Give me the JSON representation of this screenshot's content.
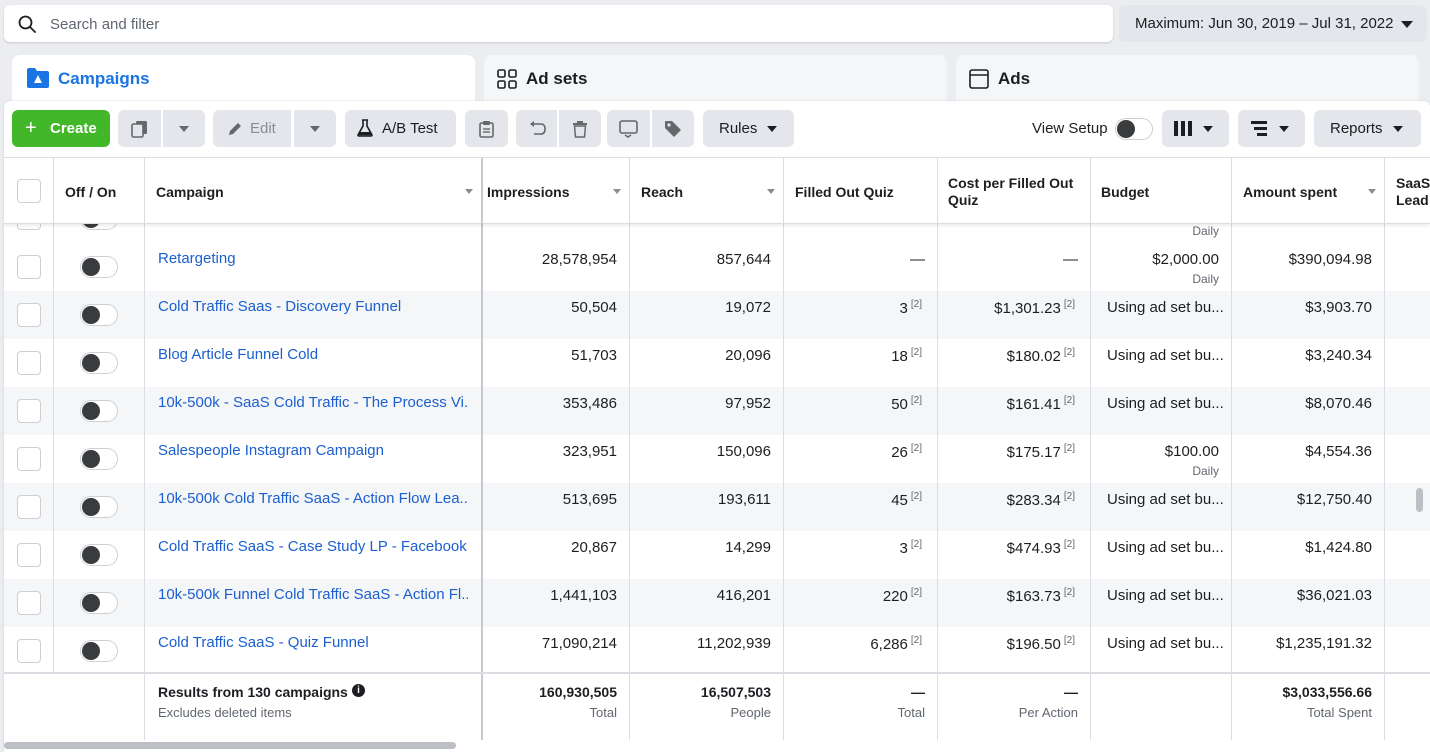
{
  "search": {
    "placeholder": "Search and filter"
  },
  "date_range": {
    "label": "Maximum: Jun 30, 2019 – Jul 31, 2022"
  },
  "tabs": [
    {
      "label": "Campaigns",
      "active": true
    },
    {
      "label": "Ad sets",
      "active": false
    },
    {
      "label": "Ads",
      "active": false
    }
  ],
  "toolbar": {
    "create_label": "Create",
    "edit_label": "Edit",
    "ab_test_label": "A/B Test",
    "rules_label": "Rules",
    "view_setup_label": "View Setup",
    "reports_label": "Reports"
  },
  "columns": {
    "off_on": "Off / On",
    "campaign": "Campaign",
    "impressions": "Impressions",
    "reach": "Reach",
    "filled_out_quiz": "Filled Out Quiz",
    "cost_per_filled_line1": "Cost per Filled Out",
    "cost_per_filled_line2": "Quiz",
    "budget": "Budget",
    "amount_spent": "Amount spent",
    "saas_lead_line1": "SaaS",
    "saas_lead_line2": "Lead"
  },
  "partial_row": {
    "budget_sub": "Daily"
  },
  "rows": [
    {
      "campaign": "Retargeting",
      "impressions": "28,578,954",
      "reach": "857,644",
      "filled_out_quiz": "—",
      "quiz_fn": "",
      "cost_per": "—",
      "cost_fn": "",
      "budget": "$2,000.00",
      "budget_sub": "Daily",
      "amount_spent": "$390,094.98"
    },
    {
      "campaign": "Cold Traffic Saas - Discovery Funnel",
      "impressions": "50,504",
      "reach": "19,072",
      "filled_out_quiz": "3",
      "quiz_fn": "[2]",
      "cost_per": "$1,301.23",
      "cost_fn": "[2]",
      "budget": "Using ad set bu...",
      "budget_sub": "",
      "amount_spent": "$3,903.70"
    },
    {
      "campaign": "Blog Article Funnel Cold",
      "impressions": "51,703",
      "reach": "20,096",
      "filled_out_quiz": "18",
      "quiz_fn": "[2]",
      "cost_per": "$180.02",
      "cost_fn": "[2]",
      "budget": "Using ad set bu...",
      "budget_sub": "",
      "amount_spent": "$3,240.34"
    },
    {
      "campaign": "10k-500k - SaaS Cold Traffic - The Process Vi...",
      "impressions": "353,486",
      "reach": "97,952",
      "filled_out_quiz": "50",
      "quiz_fn": "[2]",
      "cost_per": "$161.41",
      "cost_fn": "[2]",
      "budget": "Using ad set bu...",
      "budget_sub": "",
      "amount_spent": "$8,070.46"
    },
    {
      "campaign": "Salespeople Instagram Campaign",
      "impressions": "323,951",
      "reach": "150,096",
      "filled_out_quiz": "26",
      "quiz_fn": "[2]",
      "cost_per": "$175.17",
      "cost_fn": "[2]",
      "budget": "$100.00",
      "budget_sub": "Daily",
      "amount_spent": "$4,554.36"
    },
    {
      "campaign": "10k-500k Cold Traffic SaaS - Action Flow Lea...",
      "impressions": "513,695",
      "reach": "193,611",
      "filled_out_quiz": "45",
      "quiz_fn": "[2]",
      "cost_per": "$283.34",
      "cost_fn": "[2]",
      "budget": "Using ad set bu...",
      "budget_sub": "",
      "amount_spent": "$12,750.40"
    },
    {
      "campaign": "Cold Traffic SaaS - Case Study LP - Facebook",
      "impressions": "20,867",
      "reach": "14,299",
      "filled_out_quiz": "3",
      "quiz_fn": "[2]",
      "cost_per": "$474.93",
      "cost_fn": "[2]",
      "budget": "Using ad set bu...",
      "budget_sub": "",
      "amount_spent": "$1,424.80"
    },
    {
      "campaign": "10k-500k Funnel Cold Traffic SaaS - Action Fl...",
      "impressions": "1,441,103",
      "reach": "416,201",
      "filled_out_quiz": "220",
      "quiz_fn": "[2]",
      "cost_per": "$163.73",
      "cost_fn": "[2]",
      "budget": "Using ad set bu...",
      "budget_sub": "",
      "amount_spent": "$36,021.03"
    },
    {
      "campaign": "Cold Traffic SaaS - Quiz Funnel",
      "impressions": "71,090,214",
      "reach": "11,202,939",
      "filled_out_quiz": "6,286",
      "quiz_fn": "[2]",
      "cost_per": "$196.50",
      "cost_fn": "[2]",
      "budget": "Using ad set bu...",
      "budget_sub": "",
      "amount_spent": "$1,235,191.32"
    }
  ],
  "footer": {
    "results_label": "Results from 130 campaigns",
    "results_sub": "Excludes deleted items",
    "impressions": "160,930,505",
    "impressions_sub": "Total",
    "reach": "16,507,503",
    "reach_sub": "People",
    "filled_out_quiz": "—",
    "filled_sub": "Total",
    "cost_per": "—",
    "cost_sub": "Per Action",
    "amount_spent": "$3,033,556.66",
    "amount_sub": "Total Spent"
  },
  "colors": {
    "accent": "#1b74e4",
    "create_green": "#42b72a",
    "link": "#1b5fd0"
  }
}
